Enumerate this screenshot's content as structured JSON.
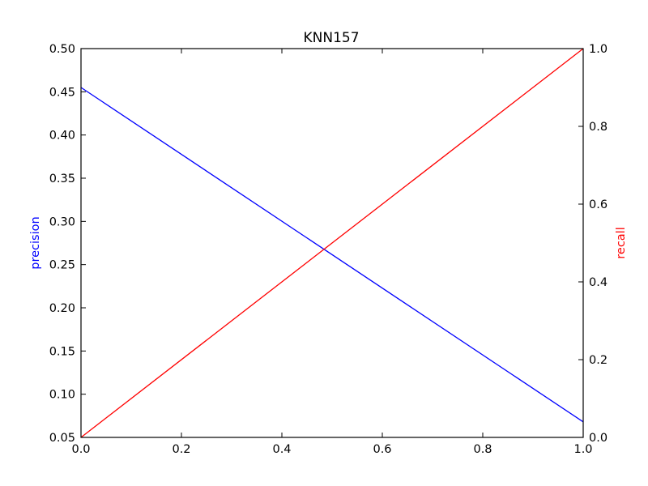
{
  "chart_data": {
    "type": "line",
    "title": "KNN157",
    "xlabel": "",
    "xlim": [
      0.0,
      1.0
    ],
    "x_ticks": [
      "0.0",
      "0.2",
      "0.4",
      "0.6",
      "0.8",
      "1.0"
    ],
    "y_left": {
      "label": "precision",
      "color": "#0000ff",
      "ylim": [
        0.05,
        0.5
      ],
      "ticks": [
        "0.05",
        "0.10",
        "0.15",
        "0.20",
        "0.25",
        "0.30",
        "0.35",
        "0.40",
        "0.45",
        "0.50"
      ]
    },
    "y_right": {
      "label": "recall",
      "color": "#ff0000",
      "ylim": [
        0.0,
        1.0
      ],
      "ticks": [
        "0.0",
        "0.2",
        "0.4",
        "0.6",
        "0.8",
        "1.0"
      ]
    },
    "series": [
      {
        "name": "precision",
        "axis": "left",
        "color": "#0000ff",
        "x": [
          0.0,
          1.0
        ],
        "y": [
          0.455,
          0.068
        ]
      },
      {
        "name": "recall",
        "axis": "right",
        "color": "#ff0000",
        "x": [
          0.0,
          1.0
        ],
        "y": [
          0.0,
          1.0
        ]
      }
    ],
    "grid": false
  }
}
